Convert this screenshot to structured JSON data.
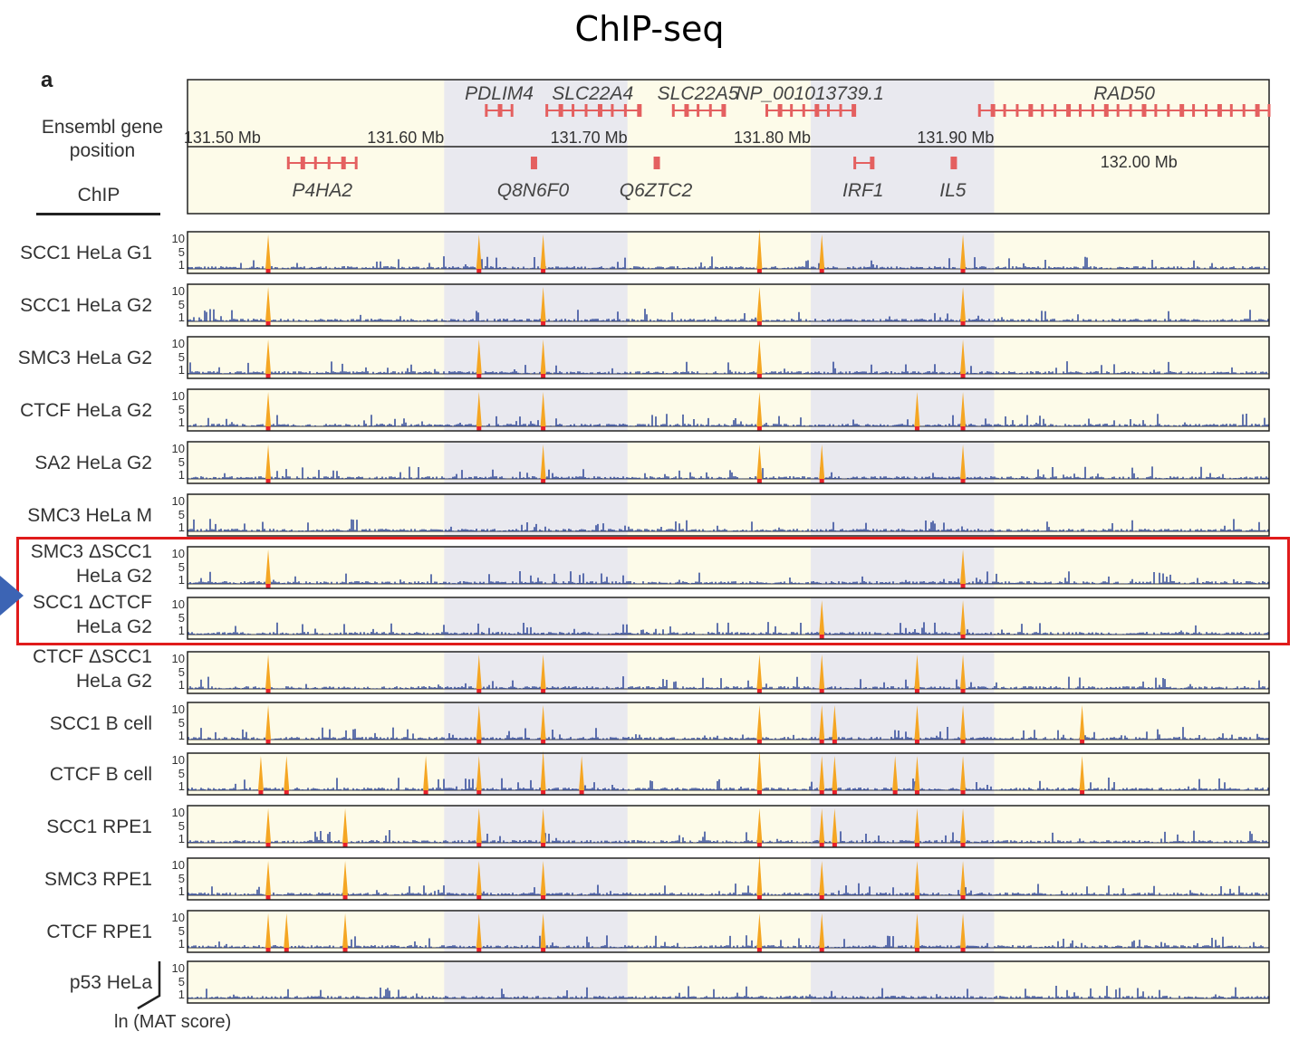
{
  "title": "ChIP-seq",
  "panel_letter": "a",
  "gene_header": {
    "label_line1": "Ensembl gene",
    "label_line2": "position",
    "chip_label": "ChIP"
  },
  "colors": {
    "signal": "#1f3a93",
    "peak": "#f5a623",
    "peak_base": "#e8202a",
    "gene": "#e46060",
    "band_light": "#fdfbe9",
    "band_gray": "#e9e9ef",
    "highlight_box": "#e01b1b",
    "arrow": "#3c64b4"
  },
  "chart_data": {
    "type": "genome_browser_tracks",
    "genome_range_mb": [
      131.46,
      132.05
    ],
    "coordinate_ticks": [
      {
        "pos_mb": 131.5,
        "label": "131.50 Mb",
        "row": "upper"
      },
      {
        "pos_mb": 131.6,
        "label": "131.60 Mb",
        "row": "upper"
      },
      {
        "pos_mb": 131.7,
        "label": "131.70 Mb",
        "row": "upper"
      },
      {
        "pos_mb": 131.8,
        "label": "131.80 Mb",
        "row": "upper"
      },
      {
        "pos_mb": 131.9,
        "label": "131.90 Mb",
        "row": "upper"
      },
      {
        "pos_mb": 132.0,
        "label": "132.00 Mb",
        "row": "lower"
      }
    ],
    "shaded_bands_mb": [
      [
        131.6,
        131.7
      ],
      [
        131.8,
        131.9
      ]
    ],
    "genes": [
      {
        "name": "P4HA2",
        "start_mb": 131.515,
        "end_mb": 131.552,
        "row": "lower"
      },
      {
        "name": "PDLIM4",
        "start_mb": 131.623,
        "end_mb": 131.637,
        "row": "upper"
      },
      {
        "name": "Q8N6F0",
        "start_mb": 131.648,
        "end_mb": 131.648,
        "row": "lower"
      },
      {
        "name": "SLC22A4",
        "start_mb": 131.656,
        "end_mb": 131.706,
        "row": "upper"
      },
      {
        "name": "Q6ZTC2",
        "start_mb": 131.715,
        "end_mb": 131.715,
        "row": "lower"
      },
      {
        "name": "SLC22A5",
        "start_mb": 131.725,
        "end_mb": 131.752,
        "row": "upper"
      },
      {
        "name": "NP_001013739.1",
        "start_mb": 131.776,
        "end_mb": 131.823,
        "row": "upper"
      },
      {
        "name": "IRF1",
        "start_mb": 131.824,
        "end_mb": 131.833,
        "row": "lower"
      },
      {
        "name": "IL5",
        "start_mb": 131.877,
        "end_mb": 131.878,
        "row": "lower"
      },
      {
        "name": "RAD50",
        "start_mb": 131.892,
        "end_mb": 132.05,
        "row": "upper"
      }
    ],
    "y_ticks": [
      "10",
      "5",
      "1"
    ],
    "y_axis_label": "ln (MAT score)",
    "tracks": [
      {
        "label_line1": "SCC1 HeLa G1",
        "label_line2": "",
        "peaks_mb": [
          131.504,
          131.619,
          131.654,
          131.772,
          131.806,
          131.883
        ],
        "strong": [
          131.772
        ]
      },
      {
        "label_line1": "SCC1 HeLa G2",
        "label_line2": "",
        "peaks_mb": [
          131.504,
          131.654,
          131.772,
          131.883
        ],
        "strong": []
      },
      {
        "label_line1": "SMC3 HeLa G2",
        "label_line2": "",
        "peaks_mb": [
          131.504,
          131.619,
          131.654,
          131.772,
          131.883
        ],
        "strong": []
      },
      {
        "label_line1": "CTCF HeLa G2",
        "label_line2": "",
        "peaks_mb": [
          131.504,
          131.619,
          131.654,
          131.772,
          131.858,
          131.883
        ],
        "strong": []
      },
      {
        "label_line1": "SA2 HeLa G2",
        "label_line2": "",
        "peaks_mb": [
          131.504,
          131.654,
          131.772,
          131.806,
          131.883
        ],
        "strong": []
      },
      {
        "label_line1": "SMC3 HeLa M",
        "label_line2": "",
        "peaks_mb": [],
        "strong": []
      },
      {
        "label_line1": "SMC3 ΔSCC1",
        "label_line2": "HeLa G2",
        "peaks_mb": [
          131.504,
          131.883
        ],
        "strong": []
      },
      {
        "label_line1": "SCC1 ΔCTCF",
        "label_line2": "HeLa G2",
        "peaks_mb": [
          131.806,
          131.883
        ],
        "strong": []
      },
      {
        "label_line1": "CTCF ΔSCC1",
        "label_line2": "HeLa G2",
        "peaks_mb": [
          131.504,
          131.619,
          131.654,
          131.772,
          131.806,
          131.858,
          131.883
        ],
        "strong": []
      },
      {
        "label_line1": "SCC1 B cell",
        "label_line2": "",
        "peaks_mb": [
          131.504,
          131.619,
          131.654,
          131.772,
          131.806,
          131.813,
          131.858,
          131.883,
          131.948
        ],
        "strong": []
      },
      {
        "label_line1": "CTCF B cell",
        "label_line2": "",
        "peaks_mb": [
          131.5,
          131.514,
          131.59,
          131.619,
          131.654,
          131.675,
          131.772,
          131.806,
          131.813,
          131.846,
          131.858,
          131.883,
          131.948
        ],
        "strong": [
          131.654,
          131.772
        ]
      },
      {
        "label_line1": "SCC1 RPE1",
        "label_line2": "",
        "peaks_mb": [
          131.504,
          131.546,
          131.619,
          131.654,
          131.772,
          131.806,
          131.813,
          131.858,
          131.883
        ],
        "strong": []
      },
      {
        "label_line1": "SMC3 RPE1",
        "label_line2": "",
        "peaks_mb": [
          131.504,
          131.546,
          131.619,
          131.654,
          131.772,
          131.806,
          131.858,
          131.883
        ],
        "strong": [
          131.772
        ]
      },
      {
        "label_line1": "CTCF RPE1",
        "label_line2": "",
        "peaks_mb": [
          131.504,
          131.514,
          131.546,
          131.619,
          131.654,
          131.772,
          131.806,
          131.858,
          131.883
        ],
        "strong": []
      },
      {
        "label_line1": "p53 HeLa",
        "label_line2": "",
        "peaks_mb": [],
        "strong": []
      }
    ],
    "highlighted_tracks": [
      "SMC3 ΔSCC1 HeLa G2",
      "SCC1 ΔCTCF HeLa G2"
    ]
  }
}
